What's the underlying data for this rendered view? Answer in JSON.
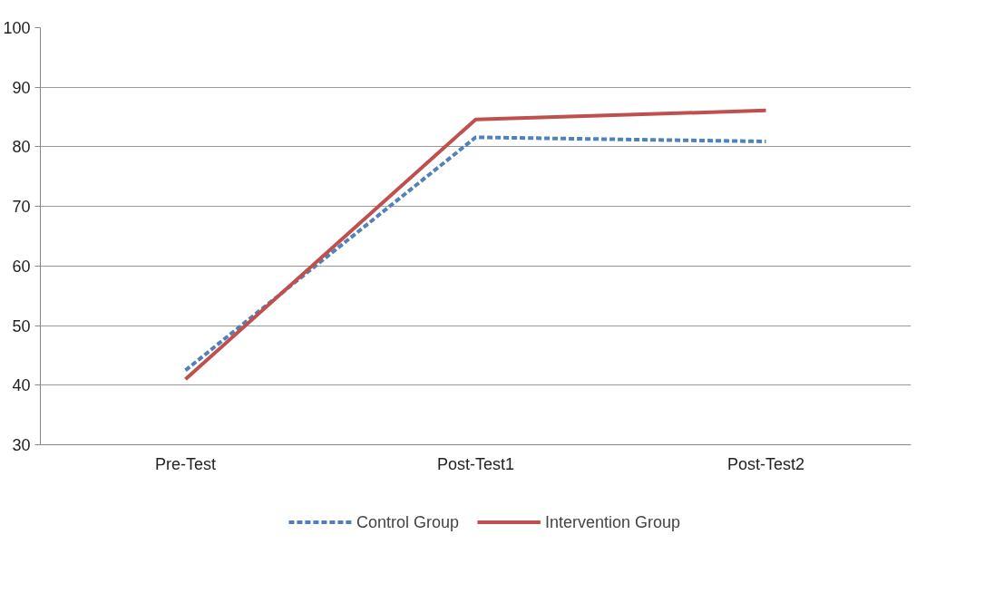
{
  "chart_data": {
    "type": "line",
    "categories": [
      "Pre-Test",
      "Post-Test1",
      "Post-Test2"
    ],
    "series": [
      {
        "name": "Control Group",
        "color": "#4f81bd",
        "values": [
          42.5,
          81.6,
          80.9
        ],
        "line_style": "dashed"
      },
      {
        "name": "Intervention Group",
        "color": "#c0504d",
        "values": [
          41.0,
          84.6,
          86.1
        ],
        "line_style": "solid"
      }
    ],
    "ylim": [
      30,
      100
    ],
    "yticks": [
      30,
      40,
      50,
      60,
      70,
      80,
      90,
      100
    ],
    "grid": "y",
    "legend": "bottom",
    "marker": "none"
  }
}
